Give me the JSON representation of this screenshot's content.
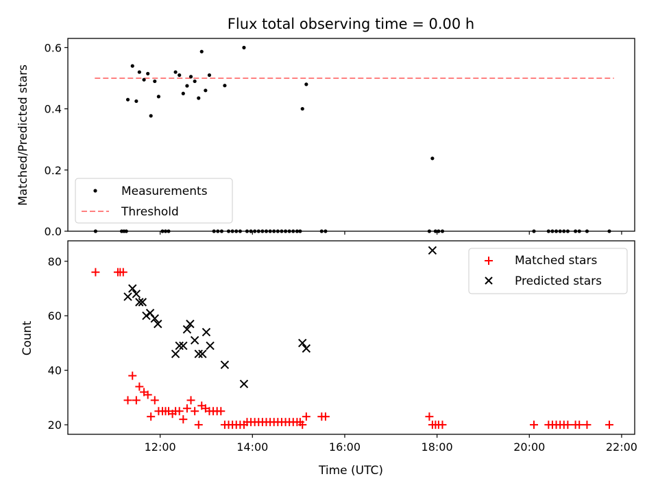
{
  "colors": {
    "measurement": "#000000",
    "threshold": "#ff7f7f",
    "matched": "#ff0000",
    "predicted": "#000000"
  },
  "chart_data": [
    {
      "type": "scatter",
      "title": "Flux total observing time = 0.00 h",
      "xlabel": "",
      "ylabel": "Matched/Predicted stars",
      "xlim": [
        "10:00",
        "22:17"
      ],
      "ylim": [
        0,
        0.63
      ],
      "xticks": [
        "12:00",
        "14:00",
        "16:00",
        "18:00",
        "20:00",
        "22:00"
      ],
      "yticks": [
        "0.0",
        "0.2",
        "0.4",
        "0.6"
      ],
      "legend": {
        "position": "bottom-left",
        "entries": [
          {
            "label": "Measurements",
            "marker": "dot"
          },
          {
            "label": "Threshold",
            "marker": "dashed-line"
          }
        ]
      },
      "threshold": {
        "name": "Threshold",
        "y": 0.5,
        "x_start": "10:35",
        "x_end": "21:50"
      },
      "series": [
        {
          "name": "Measurements",
          "points": [
            [
              "10:36",
              0
            ],
            [
              "11:10",
              0
            ],
            [
              "11:13",
              0
            ],
            [
              "11:16",
              0
            ],
            [
              "11:18",
              0.43
            ],
            [
              "11:24",
              0.54
            ],
            [
              "11:29",
              0.425
            ],
            [
              "11:33",
              0.52
            ],
            [
              "11:39",
              0.495
            ],
            [
              "11:44",
              0.515
            ],
            [
              "11:48",
              0.377
            ],
            [
              "11:53",
              0.49
            ],
            [
              "11:58",
              0.44
            ],
            [
              "12:03",
              0
            ],
            [
              "12:07",
              0
            ],
            [
              "12:11",
              0
            ],
            [
              "12:20",
              0.52
            ],
            [
              "12:25",
              0.51
            ],
            [
              "12:30",
              0.45
            ],
            [
              "12:35",
              0.475
            ],
            [
              "12:40",
              0.505
            ],
            [
              "12:45",
              0.49
            ],
            [
              "12:50",
              0.435
            ],
            [
              "12:54",
              0.587
            ],
            [
              "12:59",
              0.46
            ],
            [
              "13:04",
              0.51
            ],
            [
              "13:10",
              0
            ],
            [
              "13:15",
              0
            ],
            [
              "13:20",
              0
            ],
            [
              "13:24",
              0.476
            ],
            [
              "13:29",
              0
            ],
            [
              "13:34",
              0
            ],
            [
              "13:39",
              0
            ],
            [
              "13:44",
              0
            ],
            [
              "13:49",
              0.6
            ],
            [
              "13:53",
              0
            ],
            [
              "13:58",
              0
            ],
            [
              "14:03",
              0
            ],
            [
              "14:08",
              0
            ],
            [
              "14:13",
              0
            ],
            [
              "14:18",
              0
            ],
            [
              "14:23",
              0
            ],
            [
              "14:28",
              0
            ],
            [
              "14:33",
              0
            ],
            [
              "14:38",
              0
            ],
            [
              "14:43",
              0
            ],
            [
              "14:48",
              0
            ],
            [
              "14:53",
              0
            ],
            [
              "14:58",
              0
            ],
            [
              "15:02",
              0
            ],
            [
              "15:05",
              0.4
            ],
            [
              "15:10",
              0.48
            ],
            [
              "15:30",
              0
            ],
            [
              "15:35",
              0
            ],
            [
              "17:50",
              0
            ],
            [
              "17:54",
              0.238
            ],
            [
              "17:58",
              0
            ],
            [
              "18:02",
              0
            ],
            [
              "18:07",
              0
            ],
            [
              "20:06",
              0
            ],
            [
              "20:25",
              0
            ],
            [
              "20:30",
              0
            ],
            [
              "20:35",
              0
            ],
            [
              "20:40",
              0
            ],
            [
              "20:45",
              0
            ],
            [
              "20:50",
              0
            ],
            [
              "21:00",
              0
            ],
            [
              "21:05",
              0
            ],
            [
              "21:15",
              0
            ],
            [
              "21:44",
              0
            ]
          ]
        }
      ]
    },
    {
      "type": "scatter",
      "title": "",
      "xlabel": "Time (UTC)",
      "ylabel": "Count",
      "xlim": [
        "10:00",
        "22:17"
      ],
      "ylim": [
        16.5,
        87.5
      ],
      "xticks": [
        "12:00",
        "14:00",
        "16:00",
        "18:00",
        "20:00",
        "22:00"
      ],
      "yticks": [
        "20",
        "40",
        "60",
        "80"
      ],
      "legend": {
        "position": "top-right",
        "entries": [
          {
            "label": "Matched stars",
            "marker": "plus"
          },
          {
            "label": "Predicted stars",
            "marker": "x"
          }
        ]
      },
      "series": [
        {
          "name": "Matched stars",
          "points": [
            [
              "10:36",
              76
            ],
            [
              "11:05",
              76
            ],
            [
              "11:08",
              76
            ],
            [
              "11:12",
              76
            ],
            [
              "11:18",
              29
            ],
            [
              "11:24",
              38
            ],
            [
              "11:29",
              29
            ],
            [
              "11:33",
              34
            ],
            [
              "11:39",
              32
            ],
            [
              "11:44",
              31
            ],
            [
              "11:48",
              23
            ],
            [
              "11:53",
              29
            ],
            [
              "11:58",
              25
            ],
            [
              "12:03",
              25
            ],
            [
              "12:07",
              25
            ],
            [
              "12:11",
              25
            ],
            [
              "12:16",
              24
            ],
            [
              "12:20",
              25
            ],
            [
              "12:25",
              25
            ],
            [
              "12:30",
              22
            ],
            [
              "12:35",
              26
            ],
            [
              "12:40",
              29
            ],
            [
              "12:45",
              25
            ],
            [
              "12:50",
              20
            ],
            [
              "12:54",
              27
            ],
            [
              "12:59",
              26
            ],
            [
              "13:04",
              25
            ],
            [
              "13:09",
              25
            ],
            [
              "13:14",
              25
            ],
            [
              "13:19",
              25
            ],
            [
              "13:24",
              20
            ],
            [
              "13:29",
              20
            ],
            [
              "13:34",
              20
            ],
            [
              "13:39",
              20
            ],
            [
              "13:44",
              20
            ],
            [
              "13:49",
              20
            ],
            [
              "13:53",
              21
            ],
            [
              "13:58",
              21
            ],
            [
              "14:03",
              21
            ],
            [
              "14:08",
              21
            ],
            [
              "14:13",
              21
            ],
            [
              "14:18",
              21
            ],
            [
              "14:23",
              21
            ],
            [
              "14:28",
              21
            ],
            [
              "14:33",
              21
            ],
            [
              "14:38",
              21
            ],
            [
              "14:43",
              21
            ],
            [
              "14:48",
              21
            ],
            [
              "14:53",
              21
            ],
            [
              "14:58",
              21
            ],
            [
              "15:02",
              21
            ],
            [
              "15:05",
              20
            ],
            [
              "15:10",
              23
            ],
            [
              "15:30",
              23
            ],
            [
              "15:35",
              23
            ],
            [
              "17:50",
              23
            ],
            [
              "17:54",
              20
            ],
            [
              "17:58",
              20
            ],
            [
              "18:02",
              20
            ],
            [
              "18:07",
              20
            ],
            [
              "20:06",
              20
            ],
            [
              "20:25",
              20
            ],
            [
              "20:30",
              20
            ],
            [
              "20:35",
              20
            ],
            [
              "20:40",
              20
            ],
            [
              "20:45",
              20
            ],
            [
              "20:50",
              20
            ],
            [
              "21:00",
              20
            ],
            [
              "21:05",
              20
            ],
            [
              "21:15",
              20
            ],
            [
              "21:44",
              20
            ]
          ]
        },
        {
          "name": "Predicted stars",
          "points": [
            [
              "11:18",
              67
            ],
            [
              "11:24",
              70
            ],
            [
              "11:29",
              68
            ],
            [
              "11:33",
              65
            ],
            [
              "11:37",
              65
            ],
            [
              "11:42",
              60
            ],
            [
              "11:47",
              61
            ],
            [
              "11:53",
              59
            ],
            [
              "11:57",
              57
            ],
            [
              "12:20",
              46
            ],
            [
              "12:25",
              49
            ],
            [
              "12:30",
              49
            ],
            [
              "12:35",
              55
            ],
            [
              "12:39",
              57
            ],
            [
              "12:45",
              51
            ],
            [
              "12:50",
              46
            ],
            [
              "12:55",
              46
            ],
            [
              "13:00",
              54
            ],
            [
              "13:05",
              49
            ],
            [
              "13:24",
              42
            ],
            [
              "13:49",
              35
            ],
            [
              "15:05",
              50
            ],
            [
              "15:10",
              48
            ],
            [
              "17:54",
              84
            ]
          ]
        }
      ]
    }
  ]
}
